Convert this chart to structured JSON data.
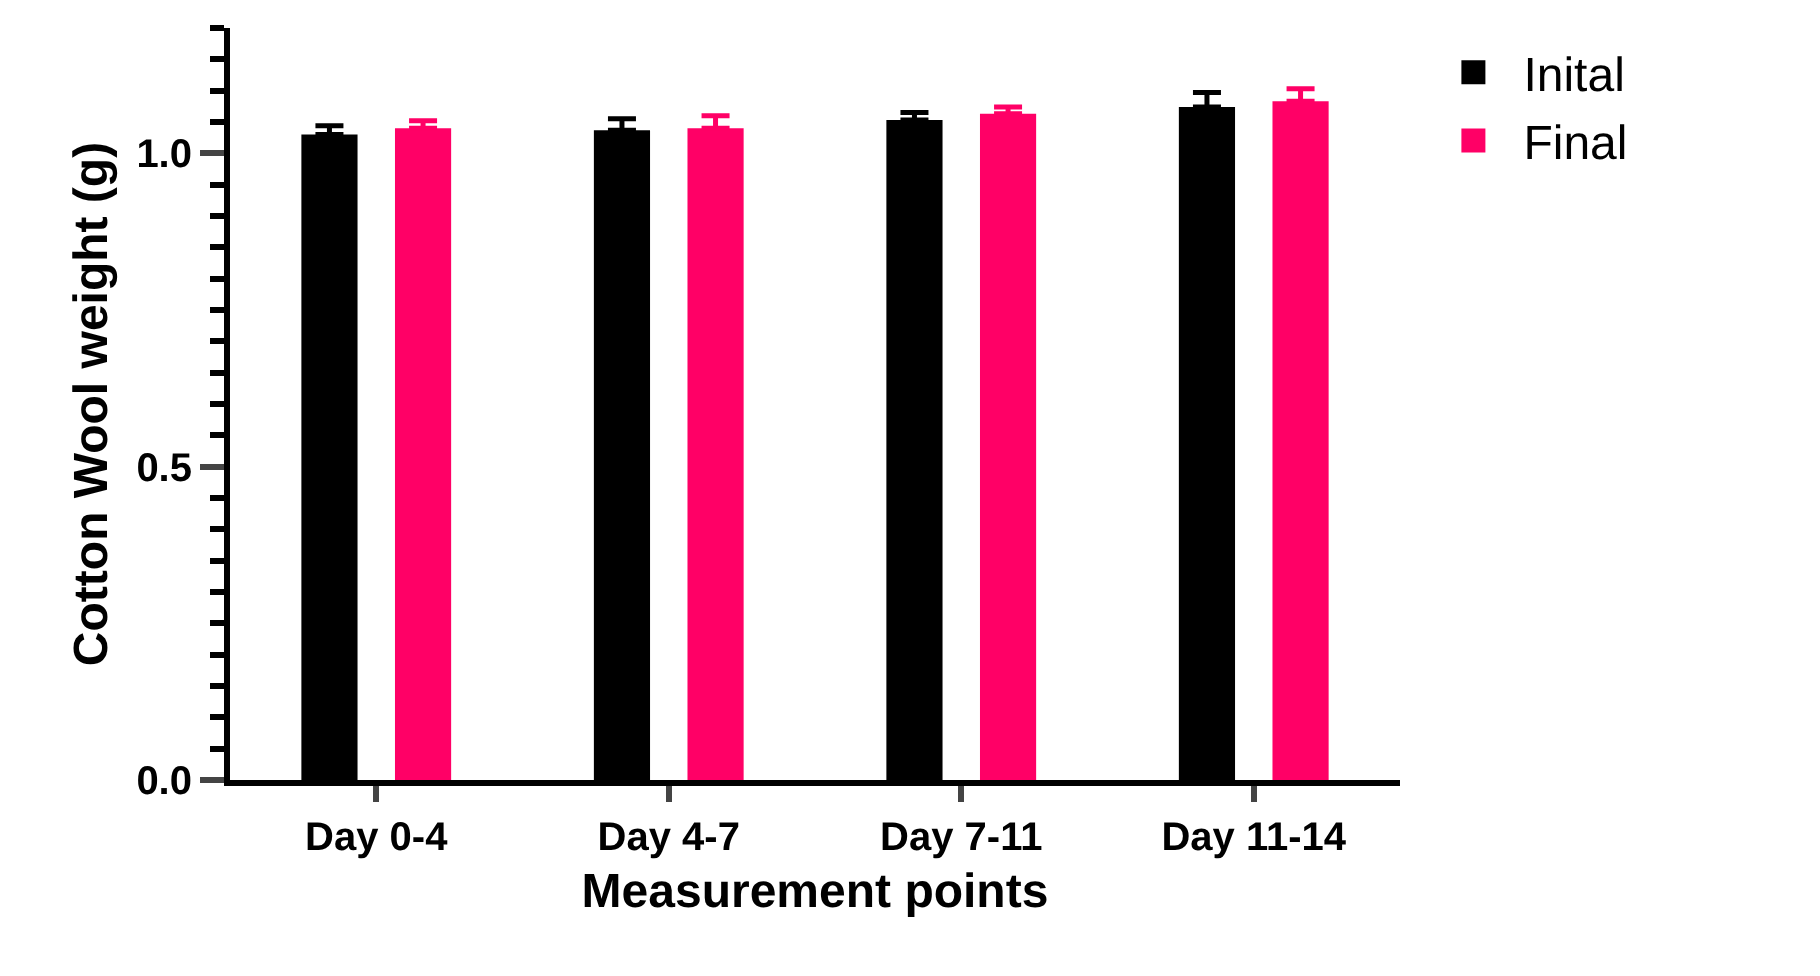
{
  "chart_data": {
    "type": "bar",
    "xlabel": "Measurement points",
    "ylabel": "Cotton Wool weight (g)",
    "categories": [
      "Day 0-4",
      "Day 4-7",
      "Day 7-11",
      "Day 11-14"
    ],
    "series": [
      {
        "name": "Inital",
        "color": "#000000",
        "values": [
          1.03,
          1.037,
          1.053,
          1.074
        ],
        "errors": [
          [
            1.03,
            1.044
          ],
          [
            1.037,
            1.055
          ],
          [
            1.053,
            1.065
          ],
          [
            1.074,
            1.097
          ]
        ]
      },
      {
        "name": "Final",
        "color": "#ff0066",
        "values": [
          1.04,
          1.04,
          1.063,
          1.083
        ],
        "errors": [
          [
            1.04,
            1.052
          ],
          [
            1.04,
            1.06
          ],
          [
            1.063,
            1.074
          ],
          [
            1.083,
            1.103
          ]
        ]
      }
    ],
    "ylim": [
      0,
      1.2
    ],
    "yticks": [
      {
        "value": 0,
        "label": "0.0"
      },
      {
        "value": 0.05,
        "label": null
      },
      {
        "value": 0.1,
        "label": null
      },
      {
        "value": 0.15,
        "label": null
      },
      {
        "value": 0.2,
        "label": null
      },
      {
        "value": 0.25,
        "label": null
      },
      {
        "value": 0.3,
        "label": null
      },
      {
        "value": 0.35,
        "label": null
      },
      {
        "value": 0.4,
        "label": null
      },
      {
        "value": 0.45,
        "label": null
      },
      {
        "value": 0.5,
        "label": "0.5"
      },
      {
        "value": 0.55,
        "label": null
      },
      {
        "value": 0.6,
        "label": null
      },
      {
        "value": 0.65,
        "label": null
      },
      {
        "value": 0.7,
        "label": null
      },
      {
        "value": 0.75,
        "label": null
      },
      {
        "value": 0.8,
        "label": null
      },
      {
        "value": 0.85,
        "label": null
      },
      {
        "value": 0.9,
        "label": null
      },
      {
        "value": 0.95,
        "label": null
      },
      {
        "value": 1.0,
        "label": "1.0"
      },
      {
        "value": 1.05,
        "label": null
      },
      {
        "value": 1.1,
        "label": null
      },
      {
        "value": 1.15,
        "label": null
      },
      {
        "value": 1.2,
        "label": null
      }
    ],
    "legend": "top right"
  }
}
